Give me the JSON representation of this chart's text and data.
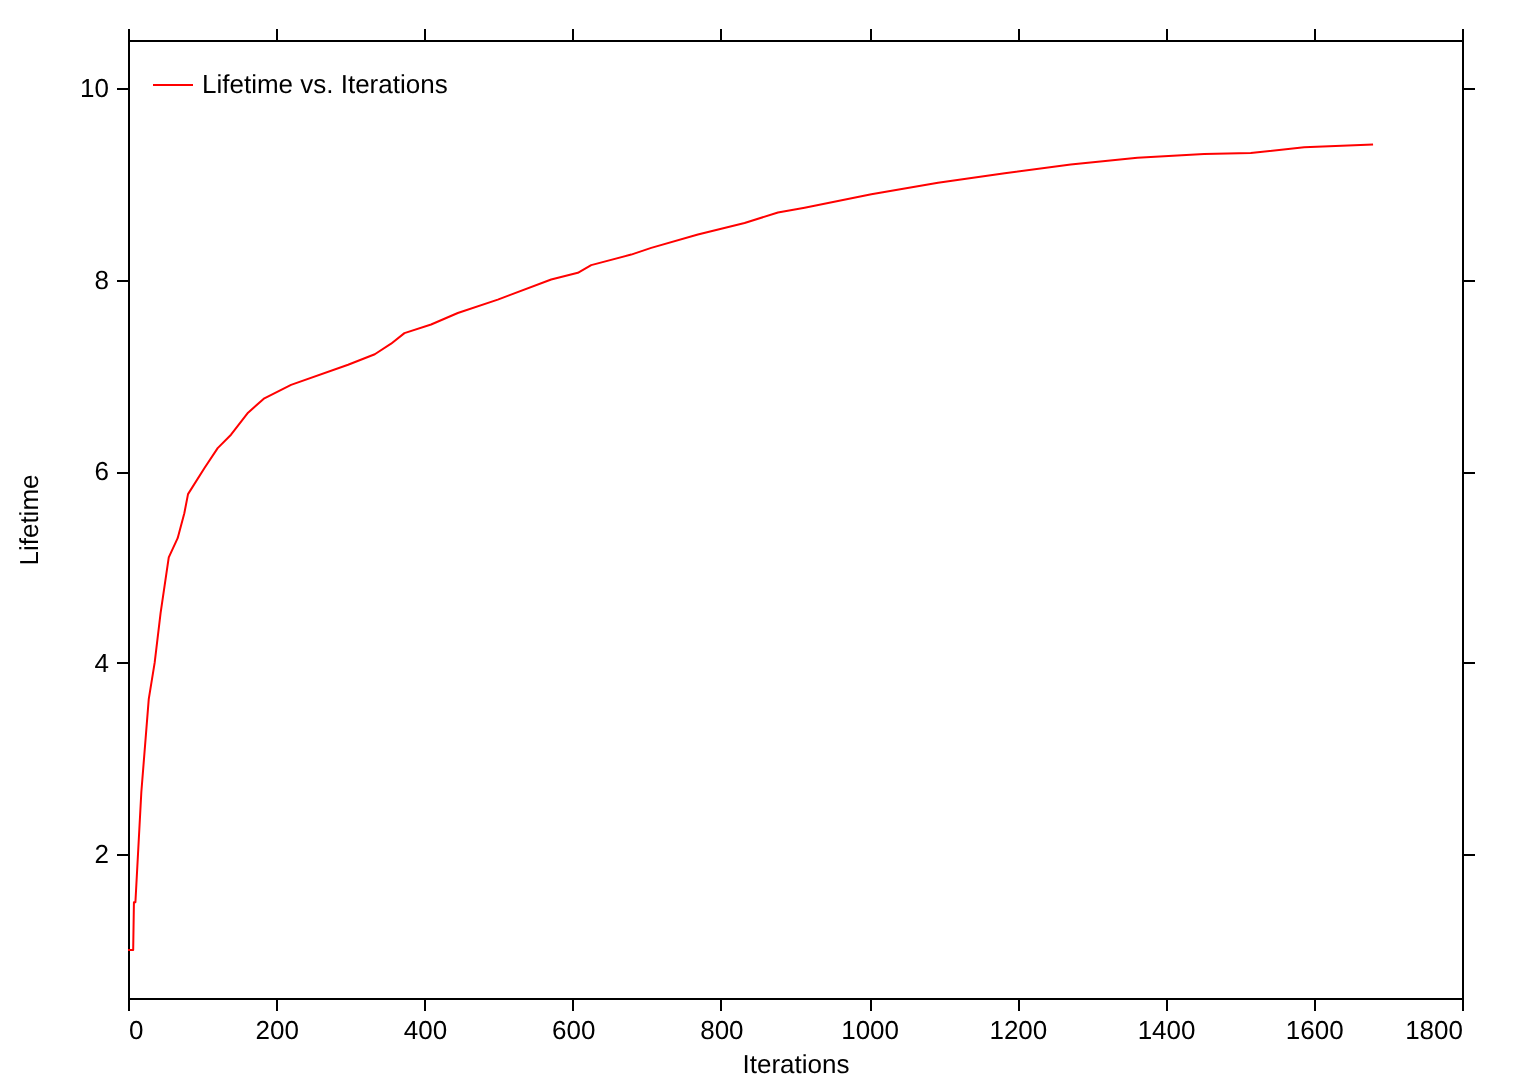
{
  "chart_data": {
    "type": "line",
    "xlabel": "Iterations",
    "ylabel": "Lifetime",
    "xlim": [
      0,
      1800
    ],
    "xticks": [
      0,
      200,
      400,
      600,
      800,
      1000,
      1200,
      1400,
      1600,
      1800
    ],
    "ylim": [
      0.5,
      10.5
    ],
    "yticks": [
      2,
      4,
      6,
      8,
      10
    ],
    "grid": false,
    "legend": "top left",
    "series": [
      {
        "name": "Lifetime vs. Iterations",
        "color": "#ff0000",
        "x": [
          0,
          7,
          8,
          10,
          18,
          28,
          36,
          44,
          55,
          67,
          76,
          81,
          103,
          121,
          139,
          162,
          184,
          220,
          297,
          333,
          355,
          373,
          409,
          445,
          499,
          571,
          607,
          625,
          679,
          706,
          769,
          832,
          877,
          913,
          1003,
          1093,
          1183,
          1272,
          1362,
          1452,
          1515,
          1587,
          1680
        ],
        "values": [
          1.0,
          1.0,
          1.5,
          1.5,
          2.65,
          3.62,
          4.0,
          4.52,
          5.1,
          5.3,
          5.56,
          5.76,
          6.03,
          6.24,
          6.38,
          6.61,
          6.76,
          6.9,
          7.11,
          7.22,
          7.33,
          7.44,
          7.53,
          7.65,
          7.79,
          8.0,
          8.07,
          8.15,
          8.26,
          8.33,
          8.47,
          8.59,
          8.7,
          8.75,
          8.89,
          9.01,
          9.11,
          9.2,
          9.27,
          9.31,
          9.32,
          9.38,
          9.41
        ]
      }
    ]
  }
}
